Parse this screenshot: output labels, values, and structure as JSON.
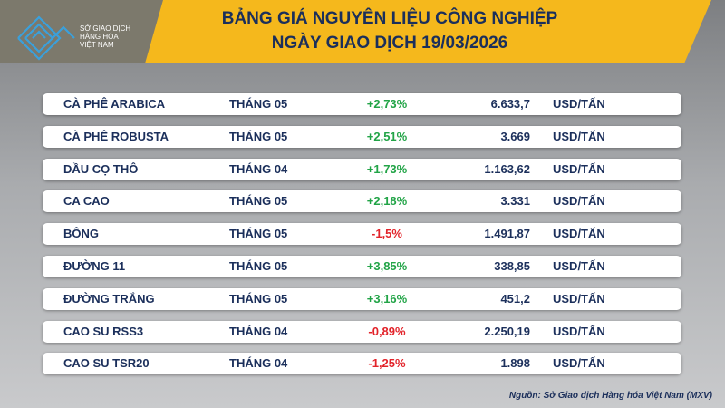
{
  "logo": {
    "lines": [
      "SỞ GIAO DỊCH",
      "HÀNG HÓA",
      "VIỆT NAM"
    ]
  },
  "header": {
    "title": "BẢNG GIÁ NGUYÊN LIỆU CÔNG NGHIỆP",
    "subtitle": "NGÀY GIAO DỊCH 19/03/2026"
  },
  "table": {
    "rows": [
      [
        "CÀ PHÊ ARABICA",
        "THÁNG 05",
        "+2,73%",
        "6.633,7",
        "USD/TẤN"
      ],
      [
        "CÀ PHÊ ROBUSTA",
        "THÁNG 05",
        "+2,51%",
        "3.669",
        "USD/TẤN"
      ],
      [
        "DẦU CỌ THÔ",
        "THÁNG 04",
        "+1,73%",
        "1.163,62",
        "USD/TẤN"
      ],
      [
        "CA CAO",
        "THÁNG 05",
        "+2,18%",
        "3.331",
        "USD/TẤN"
      ],
      [
        "BÔNG",
        "THÁNG 05",
        "-1,5%",
        "1.491,87",
        "USD/TẤN"
      ],
      [
        "ĐƯỜNG 11",
        "THÁNG 05",
        "+3,85%",
        "338,85",
        "USD/TẤN"
      ],
      [
        "ĐƯỜNG TRẮNG",
        "THÁNG 05",
        "+3,16%",
        "451,2",
        "USD/TẤN"
      ],
      [
        "CAO SU RSS3",
        "THÁNG 04",
        "-0,89%",
        "2.250,19",
        "USD/TẤN"
      ],
      [
        "CAO SU TSR20",
        "THÁNG 04",
        "-1,25%",
        "1.898",
        "USD/TẤN"
      ]
    ]
  },
  "footer": {
    "source": "Nguồn: Sở Giao dịch Hàng hóa Việt Nam (MXV)"
  }
}
